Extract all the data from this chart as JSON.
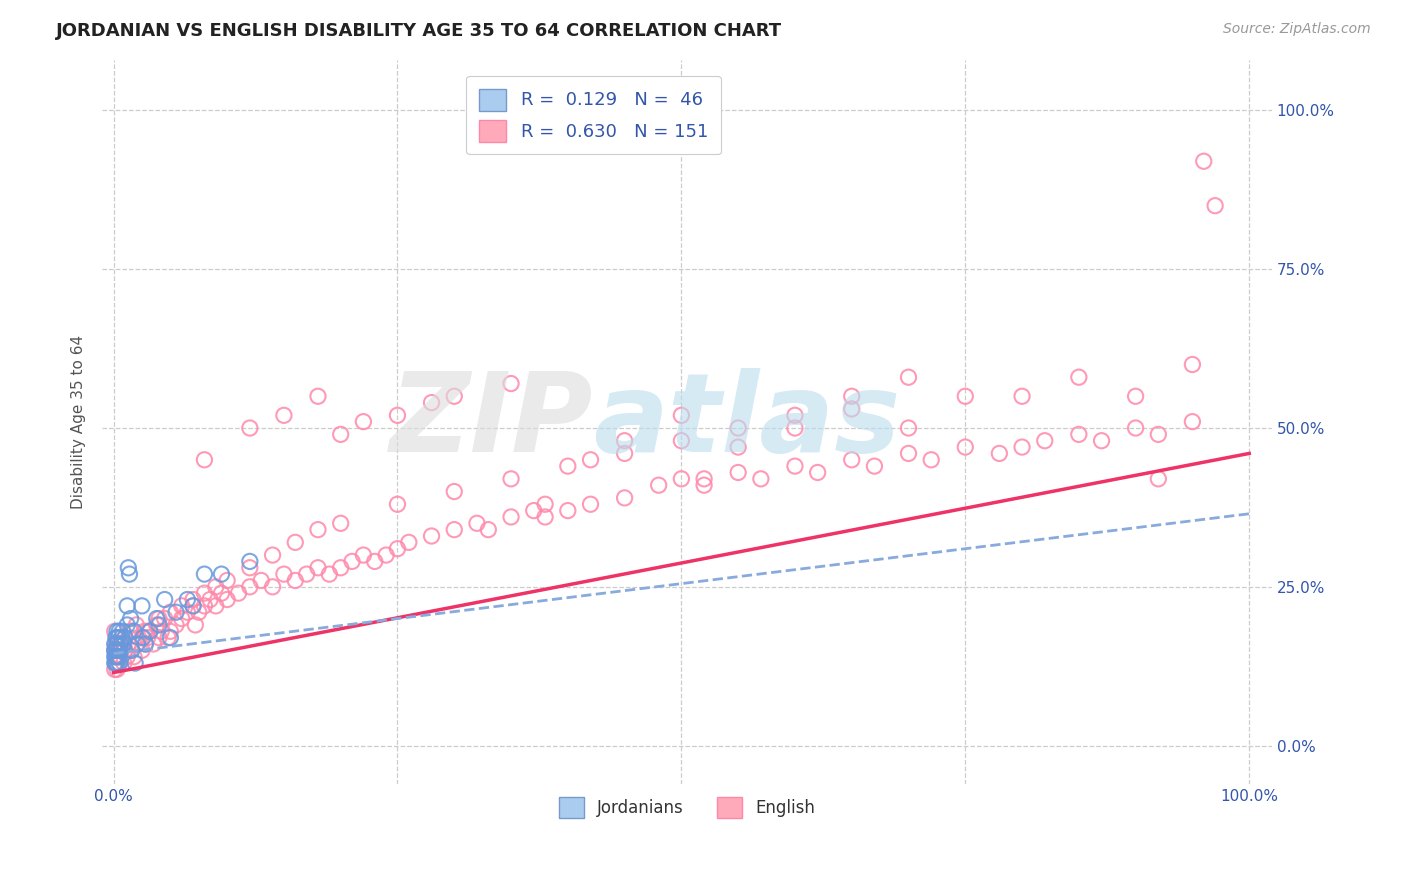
{
  "title": "JORDANIAN VS ENGLISH DISABILITY AGE 35 TO 64 CORRELATION CHART",
  "source": "Source: ZipAtlas.com",
  "ylabel": "Disability Age 35 to 64",
  "xlim": [
    -0.01,
    1.02
  ],
  "ylim": [
    -0.06,
    1.08
  ],
  "xticks": [
    0.0,
    0.25,
    0.5,
    0.75,
    1.0
  ],
  "yticks": [
    0.0,
    0.25,
    0.5,
    0.75,
    1.0
  ],
  "xtick_labels": [
    "0.0%",
    "",
    "",
    "",
    "100.0%"
  ],
  "ytick_labels_right": [
    "0.0%",
    "25.0%",
    "50.0%",
    "75.0%",
    "100.0%"
  ],
  "blue_scatter_color": "#6699DD",
  "pink_scatter_color": "#FF88AA",
  "trend_blue_color": "#88AADD",
  "trend_pink_color": "#EE3366",
  "background_color": "#FFFFFF",
  "grid_color": "#CCCCCC",
  "legend_blue_face": "#AACCEE",
  "legend_pink_face": "#FFAABB",
  "jordanian_x": [
    0.001,
    0.001,
    0.001,
    0.001,
    0.002,
    0.002,
    0.002,
    0.002,
    0.003,
    0.003,
    0.003,
    0.003,
    0.004,
    0.004,
    0.005,
    0.005,
    0.005,
    0.006,
    0.006,
    0.007,
    0.008,
    0.009,
    0.01,
    0.012,
    0.012,
    0.013,
    0.014,
    0.015,
    0.016,
    0.018,
    0.019,
    0.021,
    0.025,
    0.026,
    0.028,
    0.032,
    0.038,
    0.04,
    0.045,
    0.05,
    0.055,
    0.065,
    0.07,
    0.08,
    0.095,
    0.12
  ],
  "jordanian_y": [
    0.14,
    0.15,
    0.13,
    0.16,
    0.14,
    0.13,
    0.15,
    0.17,
    0.14,
    0.16,
    0.13,
    0.18,
    0.15,
    0.17,
    0.13,
    0.14,
    0.18,
    0.15,
    0.16,
    0.17,
    0.18,
    0.16,
    0.17,
    0.19,
    0.22,
    0.28,
    0.27,
    0.2,
    0.15,
    0.18,
    0.13,
    0.16,
    0.22,
    0.17,
    0.16,
    0.18,
    0.2,
    0.19,
    0.23,
    0.17,
    0.21,
    0.23,
    0.22,
    0.27,
    0.27,
    0.29
  ],
  "english_x": [
    0.001,
    0.001,
    0.001,
    0.002,
    0.002,
    0.003,
    0.003,
    0.004,
    0.005,
    0.005,
    0.006,
    0.007,
    0.008,
    0.009,
    0.01,
    0.01,
    0.012,
    0.013,
    0.015,
    0.016,
    0.018,
    0.02,
    0.022,
    0.025,
    0.027,
    0.028,
    0.03,
    0.032,
    0.035,
    0.038,
    0.04,
    0.042,
    0.045,
    0.048,
    0.05,
    0.055,
    0.06,
    0.065,
    0.07,
    0.072,
    0.075,
    0.08,
    0.085,
    0.09,
    0.095,
    0.1,
    0.11,
    0.12,
    0.13,
    0.14,
    0.15,
    0.16,
    0.17,
    0.18,
    0.19,
    0.2,
    0.21,
    0.22,
    0.23,
    0.24,
    0.25,
    0.26,
    0.28,
    0.3,
    0.32,
    0.33,
    0.35,
    0.37,
    0.38,
    0.4,
    0.42,
    0.45,
    0.48,
    0.5,
    0.52,
    0.55,
    0.57,
    0.6,
    0.62,
    0.65,
    0.67,
    0.7,
    0.72,
    0.75,
    0.78,
    0.8,
    0.82,
    0.85,
    0.87,
    0.9,
    0.92,
    0.95,
    0.08,
    0.12,
    0.15,
    0.18,
    0.2,
    0.22,
    0.25,
    0.28,
    0.3,
    0.35,
    0.38,
    0.42,
    0.45,
    0.5,
    0.52,
    0.55,
    0.6,
    0.65,
    0.7,
    0.75,
    0.8,
    0.85,
    0.9,
    0.92,
    0.95,
    0.003,
    0.005,
    0.007,
    0.01,
    0.015,
    0.02,
    0.025,
    0.03,
    0.04,
    0.05,
    0.06,
    0.07,
    0.08,
    0.09,
    0.1,
    0.12,
    0.14,
    0.16,
    0.18,
    0.2,
    0.25,
    0.3,
    0.35,
    0.4,
    0.45,
    0.5,
    0.55,
    0.6,
    0.65,
    0.7,
    0.96,
    0.97
  ],
  "english_y": [
    0.12,
    0.15,
    0.18,
    0.13,
    0.16,
    0.14,
    0.17,
    0.15,
    0.13,
    0.16,
    0.14,
    0.15,
    0.16,
    0.13,
    0.15,
    0.17,
    0.14,
    0.16,
    0.15,
    0.18,
    0.14,
    0.16,
    0.17,
    0.15,
    0.18,
    0.16,
    0.17,
    0.18,
    0.16,
    0.19,
    0.17,
    0.18,
    0.2,
    0.17,
    0.18,
    0.19,
    0.2,
    0.21,
    0.22,
    0.19,
    0.21,
    0.22,
    0.23,
    0.22,
    0.24,
    0.23,
    0.24,
    0.25,
    0.26,
    0.25,
    0.27,
    0.26,
    0.27,
    0.28,
    0.27,
    0.28,
    0.29,
    0.3,
    0.29,
    0.3,
    0.31,
    0.32,
    0.33,
    0.34,
    0.35,
    0.34,
    0.36,
    0.37,
    0.36,
    0.37,
    0.38,
    0.39,
    0.41,
    0.42,
    0.41,
    0.43,
    0.42,
    0.44,
    0.43,
    0.45,
    0.44,
    0.46,
    0.45,
    0.47,
    0.46,
    0.47,
    0.48,
    0.49,
    0.48,
    0.5,
    0.49,
    0.51,
    0.45,
    0.5,
    0.52,
    0.55,
    0.49,
    0.51,
    0.52,
    0.54,
    0.55,
    0.57,
    0.38,
    0.45,
    0.48,
    0.52,
    0.42,
    0.47,
    0.5,
    0.53,
    0.5,
    0.55,
    0.55,
    0.58,
    0.55,
    0.42,
    0.6,
    0.12,
    0.14,
    0.16,
    0.15,
    0.18,
    0.19,
    0.17,
    0.18,
    0.2,
    0.21,
    0.22,
    0.23,
    0.24,
    0.25,
    0.26,
    0.28,
    0.3,
    0.32,
    0.34,
    0.35,
    0.38,
    0.4,
    0.42,
    0.44,
    0.46,
    0.48,
    0.5,
    0.52,
    0.55,
    0.58,
    0.92,
    0.85
  ],
  "eng_trend_x0": 0.0,
  "eng_trend_x1": 1.0,
  "eng_trend_y0": 0.115,
  "eng_trend_y1": 0.46,
  "jord_trend_x0": 0.0,
  "jord_trend_x1": 1.0,
  "jord_trend_y0": 0.145,
  "jord_trend_y1": 0.365
}
